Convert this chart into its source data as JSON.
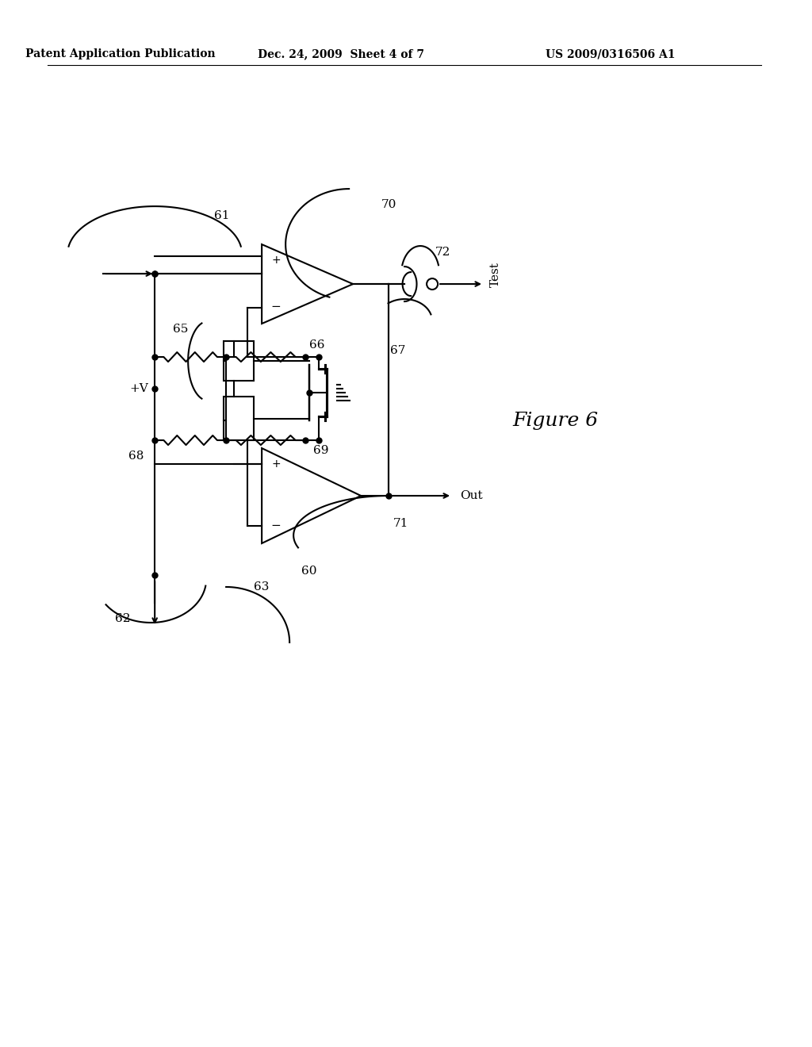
{
  "background_color": "#ffffff",
  "header_left": "Patent Application Publication",
  "header_center": "Dec. 24, 2009  Sheet 4 of 7",
  "header_right": "US 2009/0316506 A1",
  "figure_label": "Figure 6"
}
